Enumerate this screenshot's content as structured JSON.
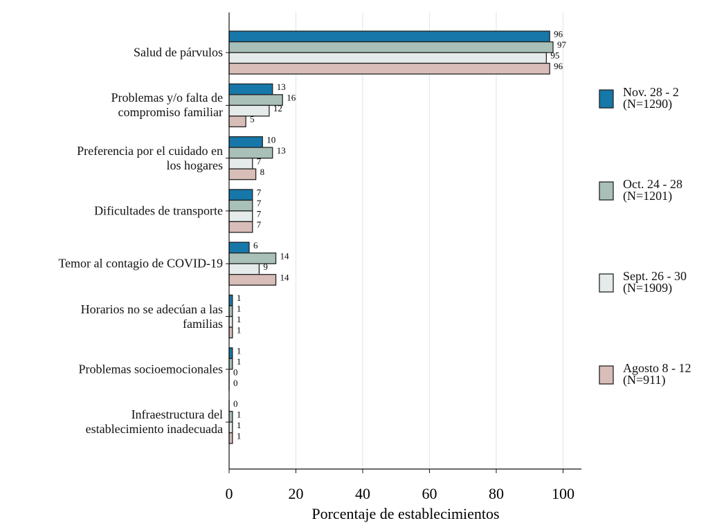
{
  "chart_data": {
    "type": "barh",
    "xlabel": "Porcentaje de establecimientos",
    "categories": [
      "Salud de párvulos",
      "Problemas y/o falta de\ncompromiso familiar",
      "Preferencia por el cuidado en\nlos hogares",
      "Dificultades de transporte",
      "Temor al contagio de COVID-19",
      "Horarios no se adecúan a las\nfamilias",
      "Problemas socioemocionales",
      "Infraestructura del\nestablecimiento inadecuada"
    ],
    "series": [
      {
        "name": "Nov. 28 - 2\n(N=1290)",
        "color": "#1677a8",
        "values": [
          96,
          13,
          10,
          7,
          6,
          1,
          1,
          0
        ]
      },
      {
        "name": "Oct. 24 - 28\n(N=1201)",
        "color": "#a9c0b9",
        "values": [
          97,
          16,
          13,
          7,
          14,
          1,
          1,
          1
        ]
      },
      {
        "name": "Sept. 26 - 30\n(N=1909)",
        "color": "#e4ebea",
        "values": [
          95,
          12,
          7,
          7,
          9,
          1,
          0,
          1
        ]
      },
      {
        "name": "Agosto 8 - 12\n(N=911)",
        "color": "#d8bdb9",
        "values": [
          96,
          5,
          8,
          7,
          14,
          1,
          0,
          1
        ]
      }
    ],
    "xlim": [
      0,
      105.5
    ],
    "xticks": [
      0,
      20,
      40,
      60,
      80,
      100
    ],
    "grid": true
  }
}
